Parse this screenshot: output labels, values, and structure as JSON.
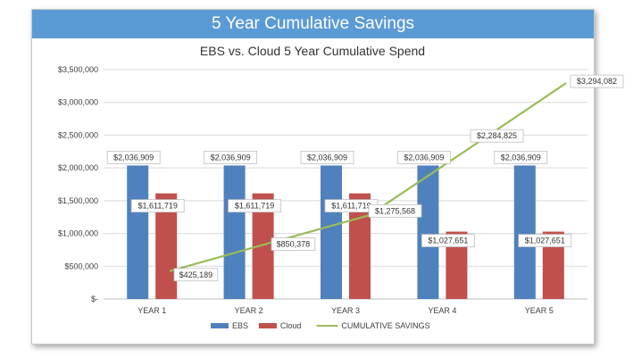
{
  "banner": {
    "title": "5 Year Cumulative Savings",
    "color": "#5b9bd5"
  },
  "chart_data": {
    "type": "bar",
    "title": "EBS vs. Cloud 5 Year Cumulative Spend",
    "categories": [
      "YEAR 1",
      "YEAR 2",
      "YEAR 3",
      "YEAR 4",
      "YEAR 5"
    ],
    "ylim": [
      0,
      3500000
    ],
    "y_ticks": [
      0,
      500000,
      1000000,
      1500000,
      2000000,
      2500000,
      3000000,
      3500000
    ],
    "y_tick_labels": [
      "$-",
      "$500,000",
      "$1,000,000",
      "$1,500,000",
      "$2,000,000",
      "$2,500,000",
      "$3,000,000",
      "$3,500,000"
    ],
    "grid": true,
    "legend_position": "bottom",
    "series": [
      {
        "name": "EBS",
        "type": "bar",
        "color": "#4f81bd",
        "values": [
          2036909,
          2036909,
          2036909,
          2036909,
          2036909
        ],
        "labels": [
          "$2,036,909",
          "$2,036,909",
          "$2,036,909",
          "$2,036,909",
          "$2,036,909"
        ]
      },
      {
        "name": "Cloud",
        "type": "bar",
        "color": "#c0504d",
        "values": [
          1611719,
          1611719,
          1611719,
          1027651,
          1027651
        ],
        "labels": [
          "$1,611,719",
          "$1,611,719",
          "$1,611,719",
          "$1,027,651",
          "$1,027,651"
        ]
      },
      {
        "name": "CUMULATIVE SAVINGS",
        "type": "line",
        "color": "#9bbb59",
        "values": [
          425189,
          850378,
          1275568,
          2284825,
          3294082
        ],
        "labels": [
          "$425,189",
          "$850,378",
          "$1,275,568",
          "$2,284,825",
          "$3,294,082"
        ]
      }
    ]
  }
}
